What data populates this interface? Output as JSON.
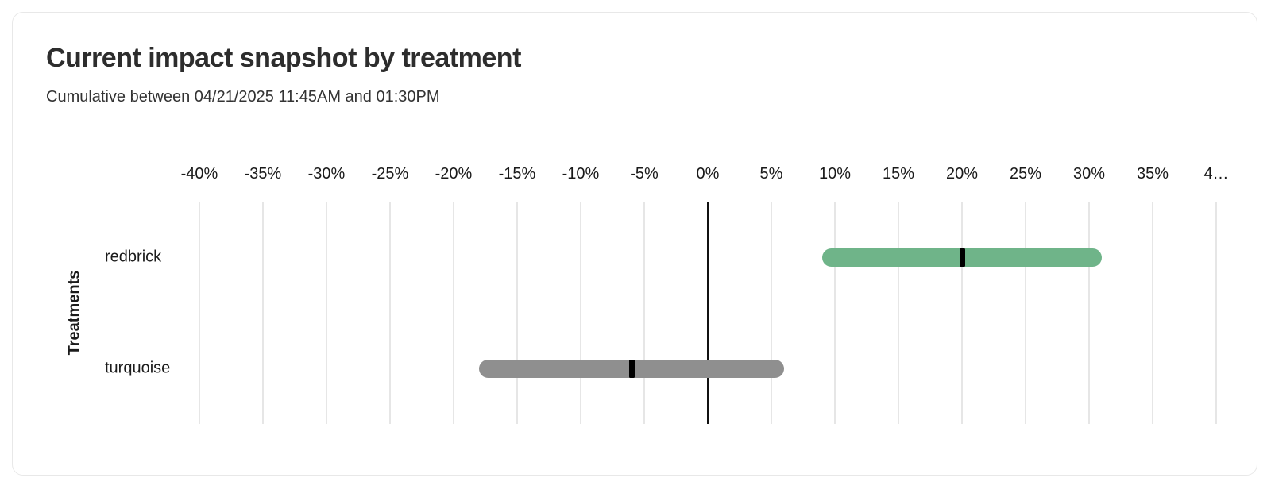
{
  "page": {
    "title": "Current impact snapshot by treatment",
    "subtitle": "Cumulative between 04/21/2025 11:45AM and 01:30PM"
  },
  "chart_data": {
    "type": "bar",
    "orientation": "horizontal",
    "title": "Current impact snapshot by treatment",
    "subtitle": "Cumulative between 04/21/2025 11:45AM and 01:30PM",
    "xlabel": "",
    "ylabel": "Treatments",
    "x_unit": "percent",
    "xlim": [
      -40,
      40
    ],
    "x_tick_values": [
      -40,
      -35,
      -30,
      -25,
      -20,
      -15,
      -10,
      -5,
      0,
      5,
      10,
      15,
      20,
      25,
      30,
      35,
      40
    ],
    "x_tick_labels": [
      "-40%",
      "-35%",
      "-30%",
      "-25%",
      "-20%",
      "-15%",
      "-10%",
      "-5%",
      "0%",
      "5%",
      "10%",
      "15%",
      "20%",
      "25%",
      "30%",
      "35%",
      "4…"
    ],
    "grid": "vertical",
    "zero_line": true,
    "categories": [
      "redbrick",
      "turquoise"
    ],
    "bars": [
      {
        "label": "redbrick",
        "ci_low": 9,
        "estimate": 20,
        "ci_high": 31,
        "color": "#6FB489"
      },
      {
        "label": "turquoise",
        "ci_low": -18,
        "estimate": -6,
        "ci_high": 6,
        "color": "#8F8F8F"
      }
    ],
    "marker_color": "#000000"
  },
  "colors": {
    "card_border": "#e8e8e8",
    "grid": "#e6e6e6",
    "zero_line": "#111111",
    "positive_bar": "#6FB489",
    "neutral_bar": "#8F8F8F"
  }
}
